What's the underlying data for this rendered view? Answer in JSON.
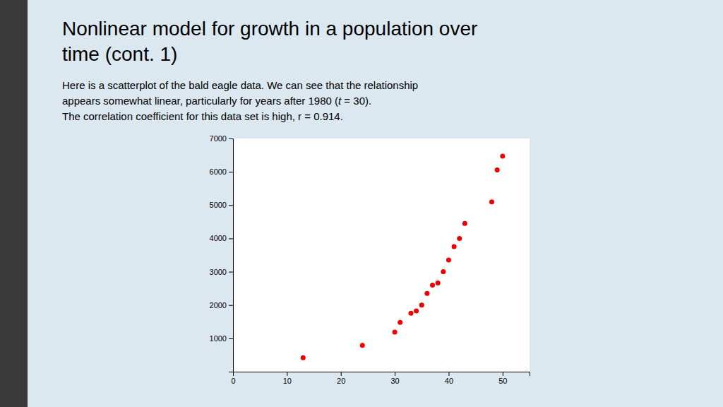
{
  "chart_data": {
    "type": "scatter",
    "title": [
      "Nonlinear model for growth in a population over",
      "time (cont. 1)"
    ],
    "annotations": [
      "Here is a scatterplot of the bald eagle data. We can see that the relationship",
      [
        "appears somewhat linear, particularly for years after 1980 (",
        "t",
        " = 30)."
      ],
      "The correlation coefficient for this data set is high, r = 0.914."
    ],
    "x": [
      13,
      24,
      30,
      31,
      33,
      34,
      35,
      36,
      37,
      38,
      39,
      40,
      41,
      42,
      43,
      48,
      49,
      50
    ],
    "values": [
      417,
      791,
      1188,
      1480,
      1757,
      1825,
      2000,
      2350,
      2600,
      2660,
      3000,
      3350,
      3757,
      4000,
      4449,
      5094,
      6058,
      6471
    ],
    "color": "#ee0000",
    "xlim": [
      0,
      55
    ],
    "ylim": [
      0,
      7000
    ],
    "xticks": [
      0,
      10,
      20,
      30,
      40,
      50
    ],
    "yticks": [
      1000,
      2000,
      3000,
      4000,
      5000,
      6000,
      7000
    ],
    "grid": false
  }
}
